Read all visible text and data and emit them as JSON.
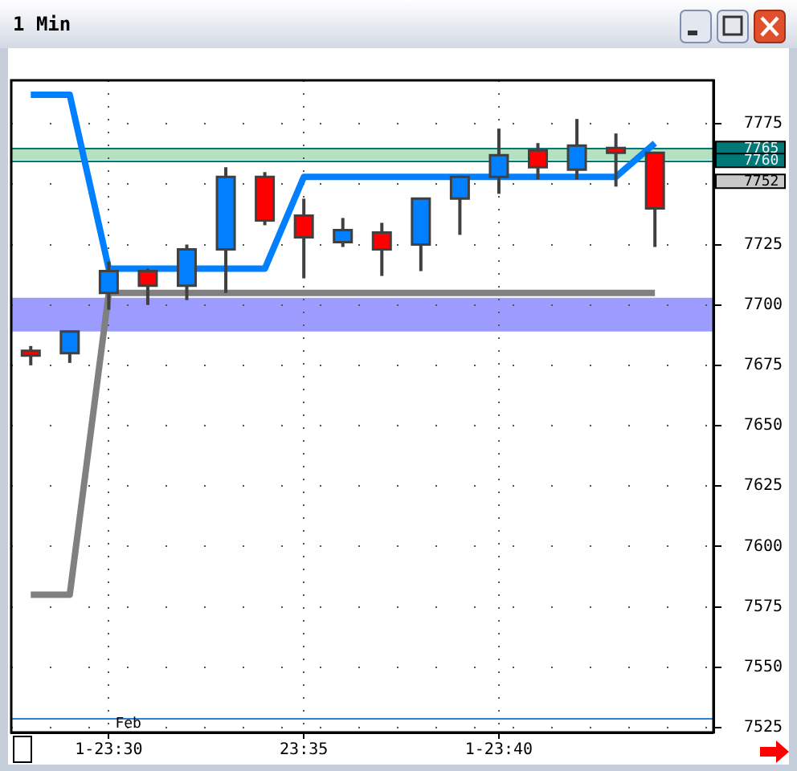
{
  "chart_data": {
    "type": "candlestick",
    "title": "1 Min",
    "categories": [
      null,
      null,
      "1-23:30",
      null,
      null,
      null,
      null,
      "23:35",
      null,
      null,
      null,
      null,
      "1-23:40",
      null,
      null,
      null,
      null,
      null
    ],
    "series": [
      {
        "color": "#404040",
        "colors": [
          "#ff0000",
          "#0080ff",
          "#0080ff",
          "#ff0000",
          "#0080ff",
          "#0080ff",
          "#ff0000",
          "#ff0000",
          "#0080ff",
          "#ff0000",
          "#0080ff",
          "#0080ff",
          "#0080ff",
          "#ff0000",
          "#0080ff",
          "#ff0000",
          "#ff0000",
          null
        ],
        "ohlc": [
          [
            7681,
            7683,
            7675,
            7679
          ],
          [
            7680,
            7689,
            7676,
            7689
          ],
          [
            7705,
            7718,
            7698,
            7714
          ],
          [
            7714,
            7715,
            7700,
            7708
          ],
          [
            7708,
            7725,
            7702,
            7723
          ],
          [
            7723,
            7757,
            7705,
            7753
          ],
          [
            7753,
            7755,
            7733,
            7735
          ],
          [
            7737,
            7744,
            7711,
            7728
          ],
          [
            7726,
            7736,
            7724,
            7731
          ],
          [
            7730,
            7734,
            7712,
            7723
          ],
          [
            7725,
            7744,
            7714,
            7744
          ],
          [
            7744,
            7753,
            7729,
            7753
          ],
          [
            7753,
            7773,
            7746,
            7762
          ],
          [
            7764,
            7767,
            7752,
            7757
          ],
          [
            7756,
            7777,
            7752,
            7766
          ],
          [
            7765,
            7771,
            7749,
            7763
          ],
          [
            7763,
            7763,
            7724,
            7740
          ],
          null
        ]
      },
      {
        "type": "line",
        "color": "#0080ff",
        "values": [
          7787,
          7787,
          7715,
          7715,
          7715,
          7715,
          7715,
          7753,
          7753,
          7753,
          7753,
          7753,
          7753,
          7753,
          7753,
          7753,
          7767,
          null
        ]
      },
      {
        "type": "line",
        "color": "#808080",
        "values": [
          7580,
          7580,
          7705,
          7705,
          7705,
          7705,
          7705,
          7705,
          7705,
          7705,
          7705,
          7705,
          7705,
          7705,
          7705,
          7705,
          7705,
          null
        ]
      }
    ],
    "ylim": [
      7523,
      7793
    ],
    "yticks": [
      7525,
      7550,
      7575,
      7600,
      7625,
      7650,
      7675,
      7700,
      7725,
      {
        "value": 7750,
        "label": null
      },
      7775
    ],
    "grid": true,
    "bands": [
      {
        "axis": "y",
        "from": 7689,
        "to": 7703,
        "color": "#9c9cff"
      },
      {
        "axis": "y",
        "from": 7760,
        "to": 7765,
        "color": "#b4e2c0"
      }
    ],
    "ref_lines": [
      {
        "axis": "y",
        "value": 7765,
        "label": "7765",
        "color": "#007878"
      },
      {
        "axis": "y",
        "value": 7760,
        "label": "7760",
        "color": "#007878"
      },
      {
        "axis": "y",
        "value": 7529,
        "color": "#2f7fd8"
      }
    ],
    "annotations": [
      "7752",
      {
        "text": "Feb",
        "x": "1-23:30"
      }
    ]
  }
}
